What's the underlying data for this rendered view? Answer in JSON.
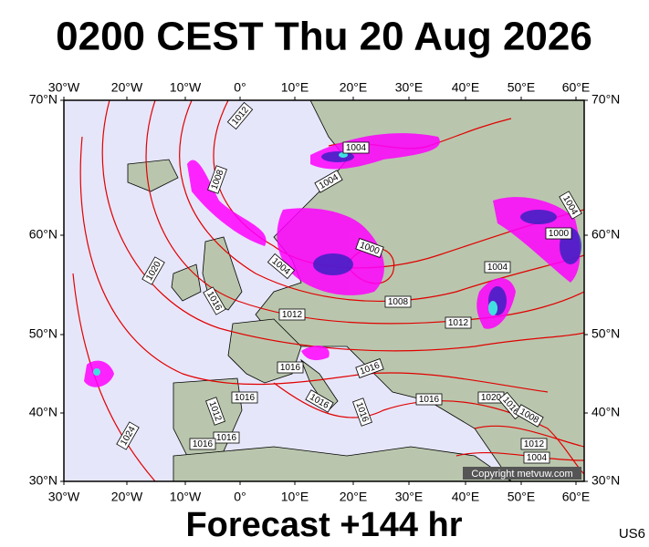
{
  "header": {
    "title": "0200 CEST Thu 20 Aug 2026"
  },
  "map": {
    "lon_labels": [
      "30°W",
      "20°W",
      "10°W",
      "0°",
      "10°E",
      "20°E",
      "30°E",
      "40°E",
      "50°E",
      "60°E"
    ],
    "lat_labels": [
      "70°N",
      "60°N",
      "50°N",
      "40°N",
      "30°N"
    ],
    "isobar_labels": [
      "1012",
      "1004",
      "1008",
      "1004",
      "1004",
      "1000",
      "1000",
      "1020",
      "1004",
      "1004",
      "1016",
      "1008",
      "1012",
      "1012",
      "1016",
      "1016",
      "1016",
      "1016",
      "1016",
      "1020",
      "1016",
      "1008",
      "1016",
      "1012",
      "1024",
      "1016",
      "1016",
      "1012",
      "1004"
    ],
    "copyright": "Copyright metvuw.com"
  },
  "footer": {
    "forecast": "Forecast +144 hr",
    "product": "US6"
  }
}
